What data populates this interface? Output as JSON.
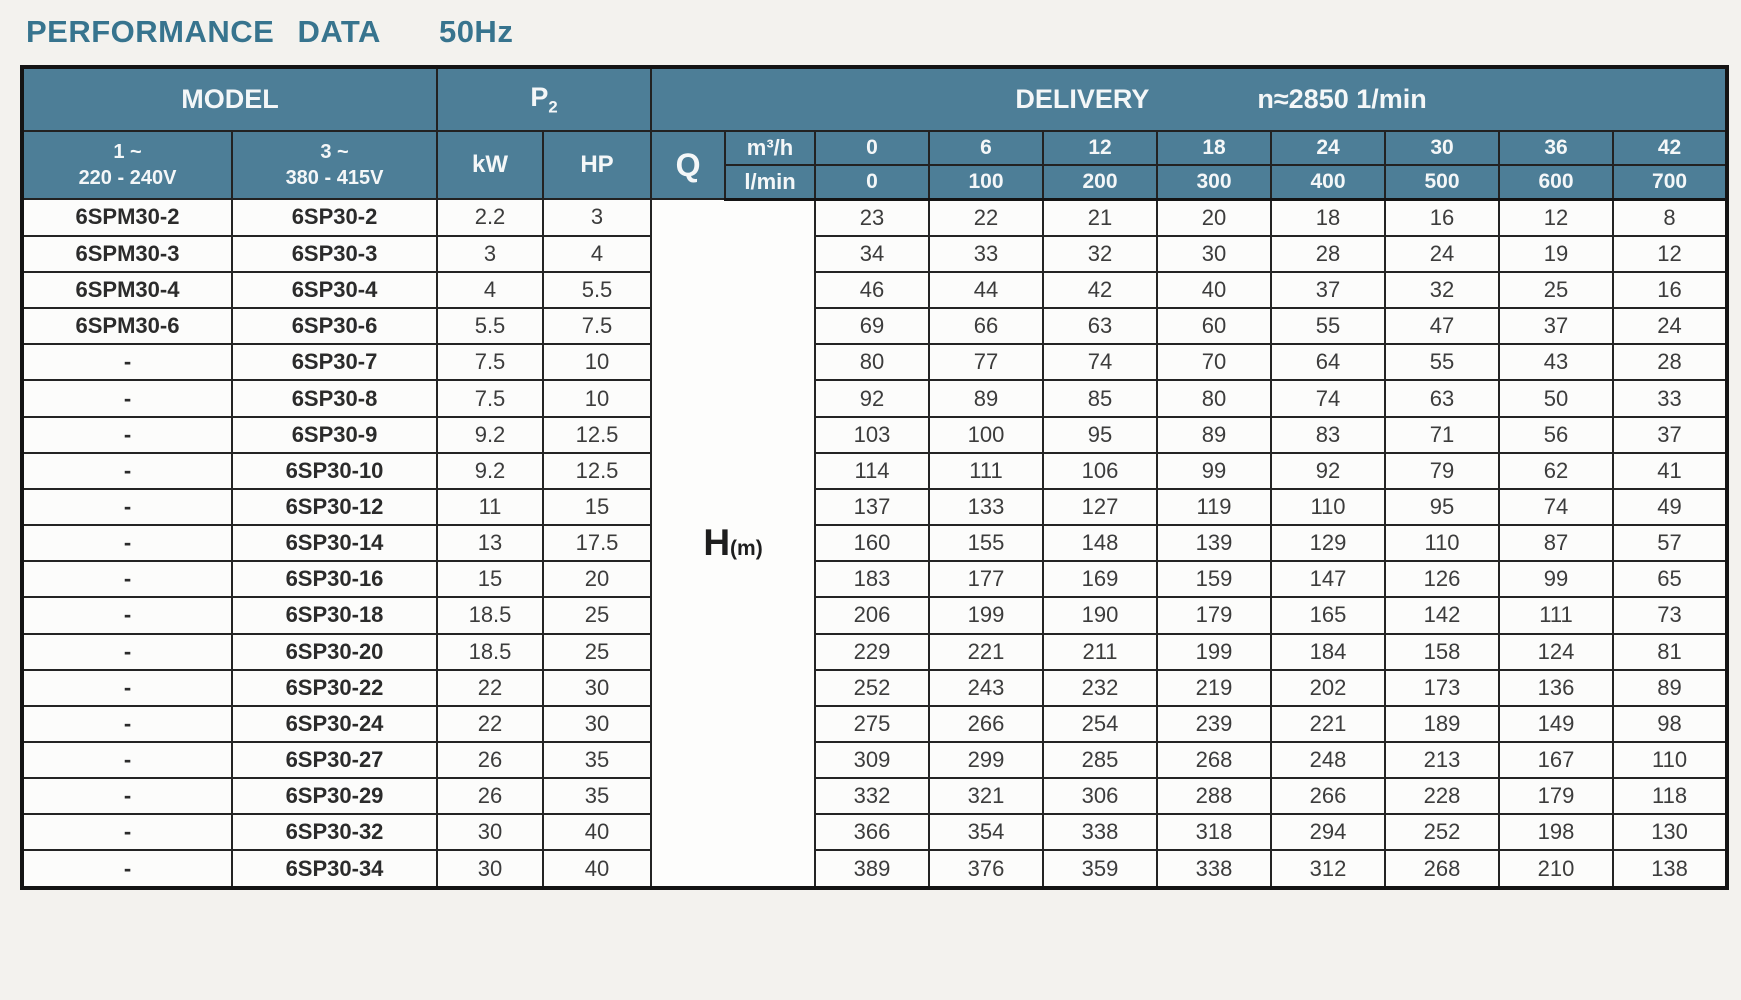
{
  "page": {
    "title": "PERFORMANCE DATA",
    "frequency": "50Hz"
  },
  "colors": {
    "header_teal": "#4d7e97",
    "title_blue": "#37748e"
  },
  "table": {
    "header": {
      "model": "MODEL",
      "p2_base": "P",
      "p2_sub": "2",
      "delivery": "DELIVERY",
      "speed": "n≈2850 1/min",
      "phase1_line1": "1 ~",
      "phase1_line2": "220 - 240V",
      "phase3_line1": "3 ~",
      "phase3_line2": "380 - 415V",
      "kw": "kW",
      "hp": "HP",
      "q": "Q",
      "unit_m3h": "m³/h",
      "unit_lmin": "l/min",
      "flow_m3h": [
        "0",
        "6",
        "12",
        "18",
        "24",
        "30",
        "36",
        "42"
      ],
      "flow_lmin": [
        "0",
        "100",
        "200",
        "300",
        "400",
        "500",
        "600",
        "700"
      ]
    },
    "head_label": {
      "h": "H",
      "unit": "(m)"
    },
    "rows": [
      {
        "model_1ph": "6SPM30-2",
        "model_3ph": "6SP30-2",
        "kw": "2.2",
        "hp": "3",
        "head_m": [
          23,
          22,
          21,
          20,
          18,
          16,
          12,
          8
        ]
      },
      {
        "model_1ph": "6SPM30-3",
        "model_3ph": "6SP30-3",
        "kw": "3",
        "hp": "4",
        "head_m": [
          34,
          33,
          32,
          30,
          28,
          24,
          19,
          12
        ]
      },
      {
        "model_1ph": "6SPM30-4",
        "model_3ph": "6SP30-4",
        "kw": "4",
        "hp": "5.5",
        "head_m": [
          46,
          44,
          42,
          40,
          37,
          32,
          25,
          16
        ]
      },
      {
        "model_1ph": "6SPM30-6",
        "model_3ph": "6SP30-6",
        "kw": "5.5",
        "hp": "7.5",
        "head_m": [
          69,
          66,
          63,
          60,
          55,
          47,
          37,
          24
        ]
      },
      {
        "model_1ph": "-",
        "model_3ph": "6SP30-7",
        "kw": "7.5",
        "hp": "10",
        "head_m": [
          80,
          77,
          74,
          70,
          64,
          55,
          43,
          28
        ]
      },
      {
        "model_1ph": "-",
        "model_3ph": "6SP30-8",
        "kw": "7.5",
        "hp": "10",
        "head_m": [
          92,
          89,
          85,
          80,
          74,
          63,
          50,
          33
        ]
      },
      {
        "model_1ph": "-",
        "model_3ph": "6SP30-9",
        "kw": "9.2",
        "hp": "12.5",
        "head_m": [
          103,
          100,
          95,
          89,
          83,
          71,
          56,
          37
        ]
      },
      {
        "model_1ph": "-",
        "model_3ph": "6SP30-10",
        "kw": "9.2",
        "hp": "12.5",
        "head_m": [
          114,
          111,
          106,
          99,
          92,
          79,
          62,
          41
        ]
      },
      {
        "model_1ph": "-",
        "model_3ph": "6SP30-12",
        "kw": "11",
        "hp": "15",
        "head_m": [
          137,
          133,
          127,
          119,
          110,
          95,
          74,
          49
        ]
      },
      {
        "model_1ph": "-",
        "model_3ph": "6SP30-14",
        "kw": "13",
        "hp": "17.5",
        "head_m": [
          160,
          155,
          148,
          139,
          129,
          110,
          87,
          57
        ]
      },
      {
        "model_1ph": "-",
        "model_3ph": "6SP30-16",
        "kw": "15",
        "hp": "20",
        "head_m": [
          183,
          177,
          169,
          159,
          147,
          126,
          99,
          65
        ]
      },
      {
        "model_1ph": "-",
        "model_3ph": "6SP30-18",
        "kw": "18.5",
        "hp": "25",
        "head_m": [
          206,
          199,
          190,
          179,
          165,
          142,
          111,
          73
        ]
      },
      {
        "model_1ph": "-",
        "model_3ph": "6SP30-20",
        "kw": "18.5",
        "hp": "25",
        "head_m": [
          229,
          221,
          211,
          199,
          184,
          158,
          124,
          81
        ]
      },
      {
        "model_1ph": "-",
        "model_3ph": "6SP30-22",
        "kw": "22",
        "hp": "30",
        "head_m": [
          252,
          243,
          232,
          219,
          202,
          173,
          136,
          89
        ]
      },
      {
        "model_1ph": "-",
        "model_3ph": "6SP30-24",
        "kw": "22",
        "hp": "30",
        "head_m": [
          275,
          266,
          254,
          239,
          221,
          189,
          149,
          98
        ]
      },
      {
        "model_1ph": "-",
        "model_3ph": "6SP30-27",
        "kw": "26",
        "hp": "35",
        "head_m": [
          309,
          299,
          285,
          268,
          248,
          213,
          167,
          110
        ]
      },
      {
        "model_1ph": "-",
        "model_3ph": "6SP30-29",
        "kw": "26",
        "hp": "35",
        "head_m": [
          332,
          321,
          306,
          288,
          266,
          228,
          179,
          118
        ]
      },
      {
        "model_1ph": "-",
        "model_3ph": "6SP30-32",
        "kw": "30",
        "hp": "40",
        "head_m": [
          366,
          354,
          338,
          318,
          294,
          252,
          198,
          130
        ]
      },
      {
        "model_1ph": "-",
        "model_3ph": "6SP30-34",
        "kw": "30",
        "hp": "40",
        "head_m": [
          389,
          376,
          359,
          338,
          312,
          268,
          210,
          138
        ]
      }
    ]
  }
}
